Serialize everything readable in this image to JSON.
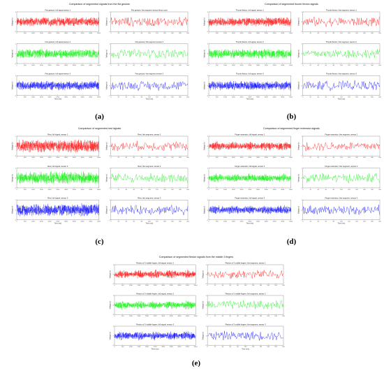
{
  "colors": {
    "sensor1": "#ff0000",
    "sensor2": "#00ee00",
    "sensor3": "#0000ff"
  },
  "panels": [
    {
      "id": "a",
      "caption": "(a)",
      "title": "Comparison of segmented signals from the fist gesture",
      "full_titles": [
        "Fist gesture, full signal sensor 1",
        "Fist gesture, full signal sensor 2",
        "Fist gesture, full signal sensor 3"
      ],
      "seg_titles": [
        "Fist gesture, first segment sensor flexor contr",
        "Fist gesture, first segment sensor 2",
        "Fist gesture, first segment sensor 3"
      ],
      "xlabel": "Time (ms)"
    },
    {
      "id": "b",
      "caption": "(b)",
      "title": "Comparison of segmented thumb flexion signals",
      "full_titles": [
        "Thumb flexion, full signal, sensor 1",
        "Thumb flexion, full signal, sensor 2",
        "Thumb flexion, full signal, sensor 3"
      ],
      "seg_titles": [
        "Thumb flexion, first segment, sensor 1",
        "Thumb flexion, first segment, sensor 2",
        "Thumb flexion, first segment, sensor 3"
      ],
      "xlabel": "Time (ms)"
    },
    {
      "id": "c",
      "caption": "(c)",
      "title": "Comparison of segmented rest signals",
      "full_titles": [
        "Rest, full signal, sensor 1",
        "Rest, full signal, sensor 2",
        "Rest, full signal, sensor 3"
      ],
      "seg_titles": [
        "Rest, first segment, sensor 1",
        "Rest, first segment, sensor 2",
        "Rest, first segment, sensor 3"
      ],
      "xlabel": "Time (ms)"
    },
    {
      "id": "d",
      "caption": "(d)",
      "title": "Comparison of segmented finger extension signals",
      "full_titles": [
        "Finger extension, full signal, sensor 1",
        "Finger extension, full signal, sensor 2",
        "Finger extension, full signal, sensor 3"
      ],
      "seg_titles": [
        "Finger extension, first segment, sensor 1",
        "Finger extension, first segment, sensor 2",
        "Finger extension, first segment, sensor 3"
      ],
      "xlabel": "Time (ms)"
    },
    {
      "id": "e",
      "caption": "(e)",
      "title": "Comparison of segmented flexion signals from the middle 3 fingers",
      "full_titles": [
        "Flexion of 3 middle fingers, full signal, sensor 1",
        "Flexion of 3 middle fingers, full signal, sensor 2",
        "Flexion of 3 middle fingers, full signal, sensor 3"
      ],
      "seg_titles": [
        "Flexion of 3 middle fingers, first segment, sensor 1",
        "Flexion of 3 middle fingers, first segment, sensor 2",
        "Flexion of 3 middle fingers, first segment, sensor 3"
      ],
      "xlabel": "Time (ms)"
    }
  ],
  "chart_data": {
    "type": "line",
    "full_signal_axis": {
      "xlim": [
        0,
        5000
      ],
      "xticks": [
        0,
        500,
        1000,
        1500,
        2000,
        2500,
        3000,
        3500,
        4000,
        4500,
        5000
      ],
      "ylabel": "Voltage (v)",
      "ylim": [
        -1,
        1
      ]
    },
    "segment_axis": {
      "xlim": [
        0,
        200
      ],
      "xticks": [
        0,
        20,
        40,
        60,
        80,
        100,
        120,
        140,
        160,
        180,
        200
      ],
      "ylabel": "Voltage (v)",
      "ylim": [
        -1,
        1
      ]
    },
    "series": [
      {
        "sensor": 1,
        "color": "#ff0000"
      },
      {
        "sensor": 2,
        "color": "#00ee00"
      },
      {
        "sensor": 3,
        "color": "#0000ff"
      }
    ],
    "grid": false
  }
}
